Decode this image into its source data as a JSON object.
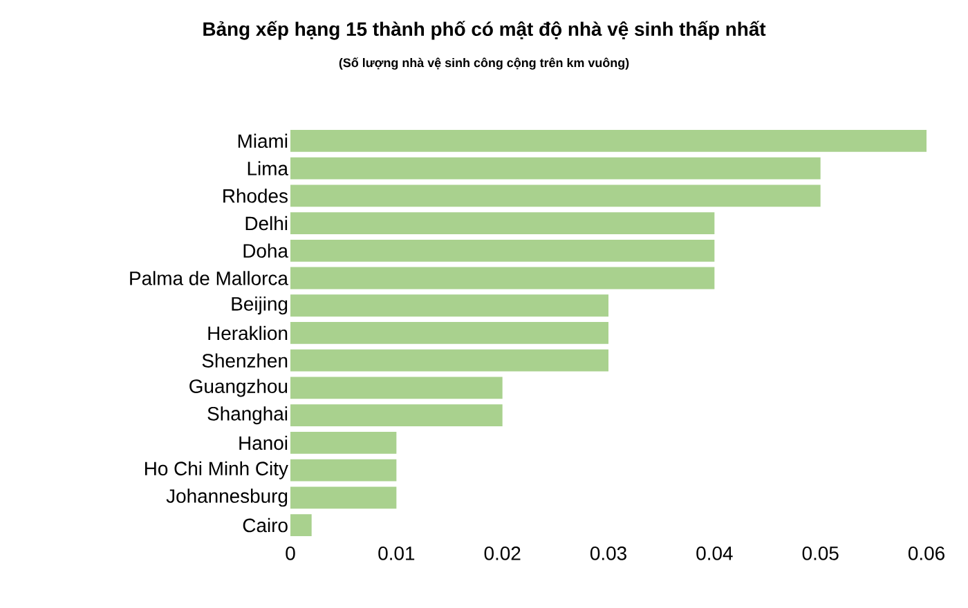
{
  "chart_data": {
    "type": "bar",
    "orientation": "horizontal",
    "title": "Bảng xếp hạng 15 thành phố có mật độ nhà vệ sinh thấp nhất",
    "subtitle": "(Số lượng nhà vệ sinh công cộng trên km vuông)",
    "categories": [
      "Miami",
      "Lima",
      "Rhodes",
      "Delhi",
      "Doha",
      "Palma de Mallorca",
      "Beijing",
      "Heraklion",
      "Shenzhen",
      "Guangzhou",
      "Shanghai",
      "Hanoi",
      "Ho Chi Minh City",
      "Johannesburg",
      "Cairo"
    ],
    "values": [
      0.06,
      0.05,
      0.05,
      0.04,
      0.04,
      0.04,
      0.03,
      0.03,
      0.03,
      0.02,
      0.02,
      0.01,
      0.01,
      0.01,
      0.002
    ],
    "color": "#a9d18e",
    "xlim": [
      0,
      0.06
    ],
    "xticks": [
      0,
      0.01,
      0.02,
      0.03,
      0.04,
      0.05,
      0.06
    ]
  }
}
